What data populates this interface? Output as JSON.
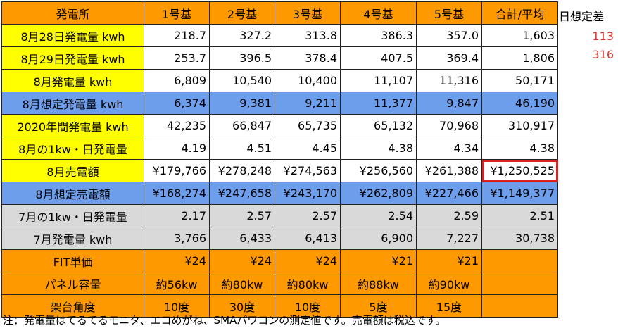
{
  "header": {
    "plant": "発電所",
    "units": [
      "1号基",
      "2号基",
      "3号基",
      "4号基",
      "5号基"
    ],
    "total": "合計/平均"
  },
  "rows": [
    {
      "label": "8月28日発電量 kwh",
      "values": [
        "218.7",
        "327.2",
        "313.8",
        "386.3",
        "357.0"
      ],
      "total": "1,603"
    },
    {
      "label": "8月29日発電量 kwh",
      "values": [
        "253.7",
        "396.5",
        "378.4",
        "407.5",
        "369.4"
      ],
      "total": "1,806"
    },
    {
      "label": "8月発電量 kwh",
      "values": [
        "6,809",
        "10,540",
        "10,400",
        "11,107",
        "11,316"
      ],
      "total": "50,171"
    },
    {
      "label": "8月想定発電量 kwh",
      "values": [
        "6,374",
        "9,381",
        "9,211",
        "11,377",
        "9,847"
      ],
      "total": "46,190"
    },
    {
      "label": "2020年間発電量 kwh",
      "values": [
        "42,235",
        "66,847",
        "65,735",
        "65,132",
        "70,968"
      ],
      "total": "310,917"
    },
    {
      "label": "8月の1kw・日発電量",
      "values": [
        "4.19",
        "4.51",
        "4.45",
        "4.38",
        "4.34"
      ],
      "total": "4.38"
    },
    {
      "label": "8月売電額",
      "values": [
        "¥179,766",
        "¥278,248",
        "¥274,563",
        "¥256,560",
        "¥261,388"
      ],
      "total": "¥1,250,525"
    },
    {
      "label": "8月想定売電額",
      "values": [
        "¥168,274",
        "¥247,658",
        "¥243,170",
        "¥262,809",
        "¥227,466"
      ],
      "total": "¥1,149,377"
    },
    {
      "label": "7月の1kw・日発電量",
      "values": [
        "2.17",
        "2.57",
        "2.57",
        "2.54",
        "2.59"
      ],
      "total": "2.51"
    },
    {
      "label": "7月発電量 kwh",
      "values": [
        "3,766",
        "6,433",
        "6,413",
        "6,900",
        "7,227"
      ],
      "total": "30,738"
    },
    {
      "label": "FIT単価",
      "values": [
        "¥24",
        "¥24",
        "¥24",
        "¥21",
        "¥21"
      ],
      "total": ""
    },
    {
      "label": "パネル容量",
      "values": [
        "約56kw",
        "約80kw",
        "約80kw",
        "約88kw",
        "約90kw"
      ],
      "total": ""
    },
    {
      "label": "架台角度",
      "values": [
        "10度",
        "30度",
        "10度",
        "5度",
        "15度"
      ],
      "total": ""
    }
  ],
  "side": {
    "title": "日想定差",
    "values": [
      "113",
      "316"
    ],
    "value_color": "#E03030"
  },
  "note": "注：発電量はてるてるモニタ、エコめがね、SMAパワコンの測定値です。売電額は税込です。",
  "colors": {
    "header": "#FF9900",
    "label_yellow": "#FFFF00",
    "blue_row": "#6D9EEB",
    "gray_row": "#D9D9D9",
    "highlight_border": "#E02020"
  }
}
